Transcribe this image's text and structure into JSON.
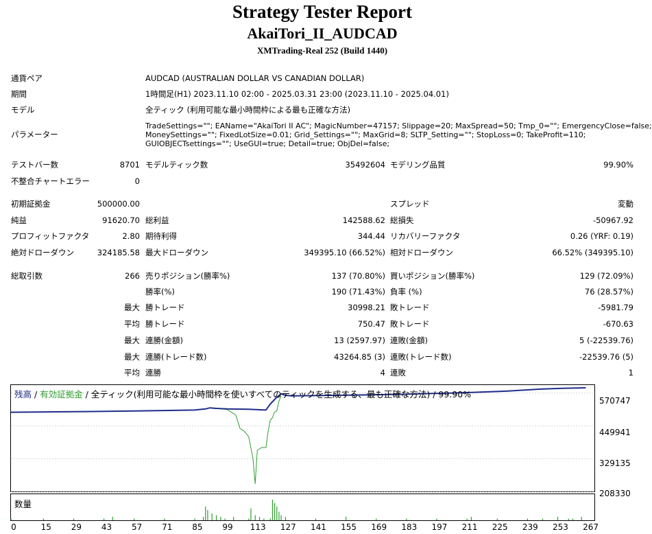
{
  "header": {
    "title": "Strategy Tester Report",
    "ea_name": "AkaiTori_II_AUDCAD",
    "server": "XMTrading-Real 252 (Build 1440)"
  },
  "info": {
    "symbol_label": "通貨ペア",
    "symbol_value": "AUDCAD (AUSTRALIAN DOLLAR VS CANADIAN DOLLAR)",
    "period_label": "期間",
    "period_value": "1時間足(H1) 2023.11.10 02:00 - 2025.03.31 23:00 (2023.11.10 - 2025.04.01)",
    "model_label": "モデル",
    "model_value": "全ティック (利用可能な最小時間枠による最も正確な方法)",
    "params_label": "パラメーター",
    "params_line1": "TradeSettings=\"\"; EAName=\"AkaiTori II AC\"; MagicNumber=47157; Slippage=20; MaxSpread=50; Tmp_0=\"\"; EmergencyClose=false;",
    "params_line2": "MoneySettings=\"\"; FixedLotSize=0.01; Grid_Settings=\"\"; MaxGrid=8; SLTP_Setting=\"\"; StopLoss=0; TakeProfit=110;",
    "params_line3": "GUIOBJECTsettings=\"\"; UseGUI=true; Detail=true; ObjDel=false;"
  },
  "stats": {
    "bars_label": "テストバー数",
    "bars_value": "8701",
    "ticks_label": "モデルティック数",
    "ticks_value": "35492604",
    "quality_label": "モデリング品質",
    "quality_value": "99.90%",
    "mismatch_label": "不整合チャートエラー",
    "mismatch_value": "0",
    "deposit_label": "初期証拠金",
    "deposit_value": "500000.00",
    "spread_label": "スプレッド",
    "spread_value": "変動",
    "net_label": "純益",
    "net_value": "91620.70",
    "gross_profit_label": "総利益",
    "gross_profit_value": "142588.62",
    "gross_loss_label": "総損失",
    "gross_loss_value": "-50967.92",
    "pf_label": "プロフィットファクタ",
    "pf_value": "2.80",
    "payoff_label": "期待利得",
    "payoff_value": "344.44",
    "recovery_label": "リカバリーファクタ",
    "recovery_value": "0.26 (YRF: 0.19)",
    "abs_dd_label": "絶対ドローダウン",
    "abs_dd_value": "324185.58",
    "max_dd_label": "最大ドローダウン",
    "max_dd_value": "349395.10 (66.52%)",
    "rel_dd_label": "相対ドローダウン",
    "rel_dd_value": "66.52% (349395.10)",
    "total_trades_label": "総取引数",
    "total_trades_value": "266",
    "short_label": "売りポジション(勝率%)",
    "short_value": "137 (70.80%)",
    "long_label": "買いポジション(勝率%)",
    "long_value": "129 (72.09%)",
    "win_rate_label": "勝率(%)",
    "win_rate_value": "190 (71.43%)",
    "loss_rate_label": "負率 (%)",
    "loss_rate_value": "76 (28.57%)",
    "max_tag": "最大",
    "avg_tag": "平均",
    "largest_win_label": "勝トレード",
    "largest_win_value": "30998.21",
    "largest_loss_label": "敗トレード",
    "largest_loss_value": "-5981.79",
    "avg_win_label": "勝トレード",
    "avg_win_value": "750.47",
    "avg_loss_label": "敗トレード",
    "avg_loss_value": "-670.63",
    "max_consec_wins_money_label": "連勝(金額)",
    "max_consec_wins_money_value": "13 (2597.97)",
    "max_consec_losses_money_label": "連敗(金額)",
    "max_consec_losses_money_value": "5 (-22539.76)",
    "max_consec_wins_trades_label": "連勝(トレード数)",
    "max_consec_wins_trades_value": "43264.85 (3)",
    "max_consec_losses_trades_label": "連敗(トレード数)",
    "max_consec_losses_trades_value": "-22539.76 (5)",
    "avg_consec_wins_label": "連勝",
    "avg_consec_wins_value": "4",
    "avg_consec_losses_label": "連敗",
    "avg_consec_losses_value": "1"
  },
  "chart_data": {
    "type": "line",
    "legend_balance": "残高",
    "legend_sep1": " / ",
    "legend_equity": "有効証拠金",
    "legend_sep2": " / ",
    "legend_rest": "全ティック(利用可能な最小時間枠を使いすべてのティックを生成する、最も正確な方法) / 99.90%",
    "colors": {
      "balance": "#1e2c8a",
      "equity": "#2e9e2e",
      "volume": "#2e9e2e"
    },
    "ylim": [
      208330,
      600000
    ],
    "y_ticks": [
      "570747",
      "449941",
      "329135",
      "208330"
    ],
    "x_ticks": [
      "0",
      "15",
      "29",
      "43",
      "57",
      "71",
      "85",
      "99",
      "113",
      "127",
      "141",
      "155",
      "169",
      "183",
      "197",
      "211",
      "225",
      "239",
      "253",
      "267"
    ],
    "xlim": [
      0,
      270
    ],
    "volume_label": "数量",
    "series": [
      {
        "name": "残高",
        "x": [
          0,
          30,
          60,
          85,
          90,
          92,
          95,
          100,
          110,
          118,
          120,
          123,
          125,
          127,
          130,
          150,
          180,
          210,
          230,
          245,
          255,
          266
        ],
        "values": [
          500000,
          502000,
          505000,
          508000,
          512000,
          516000,
          514000,
          512000,
          511000,
          508000,
          530000,
          555000,
          568000,
          562000,
          560000,
          562000,
          566000,
          572000,
          578000,
          585000,
          588000,
          590000
        ]
      },
      {
        "name": "有効証拠金",
        "x": [
          92,
          100,
          104,
          106,
          108,
          110,
          112,
          113,
          114,
          116,
          118,
          119,
          120,
          121,
          122,
          123,
          124,
          125
        ],
        "values": [
          516000,
          510000,
          490000,
          440000,
          430000,
          410000,
          330000,
          236000,
          360000,
          370000,
          370000,
          430000,
          470000,
          480000,
          500000,
          505000,
          540000,
          560000
        ]
      }
    ],
    "volume": {
      "x": [
        0,
        15,
        29,
        43,
        47,
        57,
        71,
        85,
        89,
        90,
        91,
        93,
        95,
        97,
        99,
        103,
        110,
        111,
        113,
        115,
        117,
        120,
        121,
        122,
        123,
        124,
        125,
        127,
        141,
        155,
        169,
        183,
        197,
        211,
        213,
        225,
        239,
        246,
        253,
        258,
        260,
        264
      ],
      "values": [
        1,
        1,
        1,
        1,
        2,
        1,
        1,
        1,
        2,
        8,
        6,
        4,
        3,
        2,
        1,
        2,
        1,
        7,
        3,
        2,
        1,
        1,
        12,
        10,
        8,
        5,
        3,
        2,
        1,
        2,
        1,
        1,
        1,
        1,
        2,
        1,
        1,
        1,
        2,
        1,
        1,
        2
      ]
    }
  }
}
